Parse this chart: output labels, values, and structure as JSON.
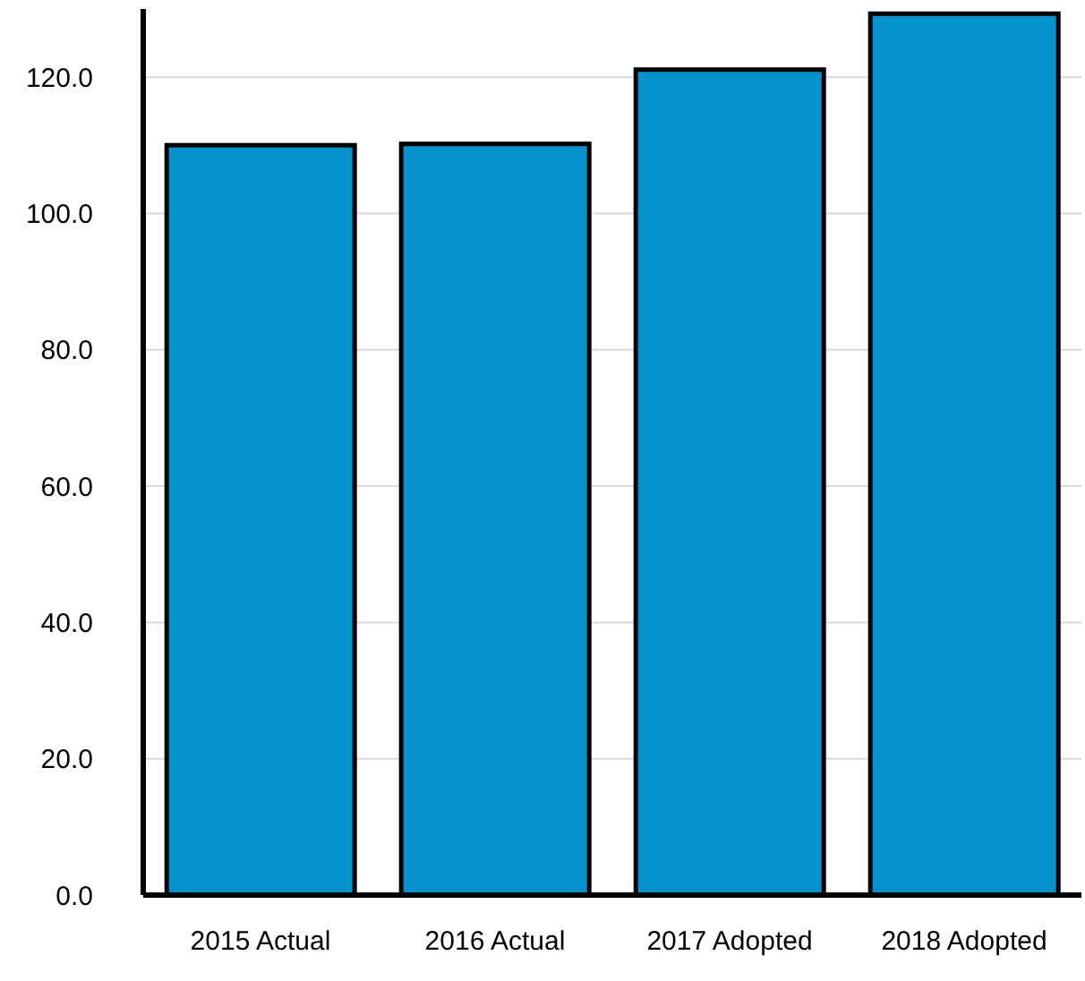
{
  "chart_data": {
    "type": "bar",
    "categories": [
      "2015 Actual",
      "2016 Actual",
      "2017 Adopted",
      "2018 Adopted"
    ],
    "values": [
      110.0,
      110.2,
      121.1,
      129.3
    ],
    "color": "#0693cd",
    "ylim": [
      0,
      130
    ],
    "yticks": [
      {
        "value": 0,
        "label": "0.0"
      },
      {
        "value": 20,
        "label": "20.0"
      },
      {
        "value": 40,
        "label": "40.0"
      },
      {
        "value": 60,
        "label": "60.0"
      },
      {
        "value": 80,
        "label": "80.0"
      },
      {
        "value": 100,
        "label": "100.0"
      },
      {
        "value": 120,
        "label": "120.0"
      }
    ],
    "grid": "y"
  }
}
